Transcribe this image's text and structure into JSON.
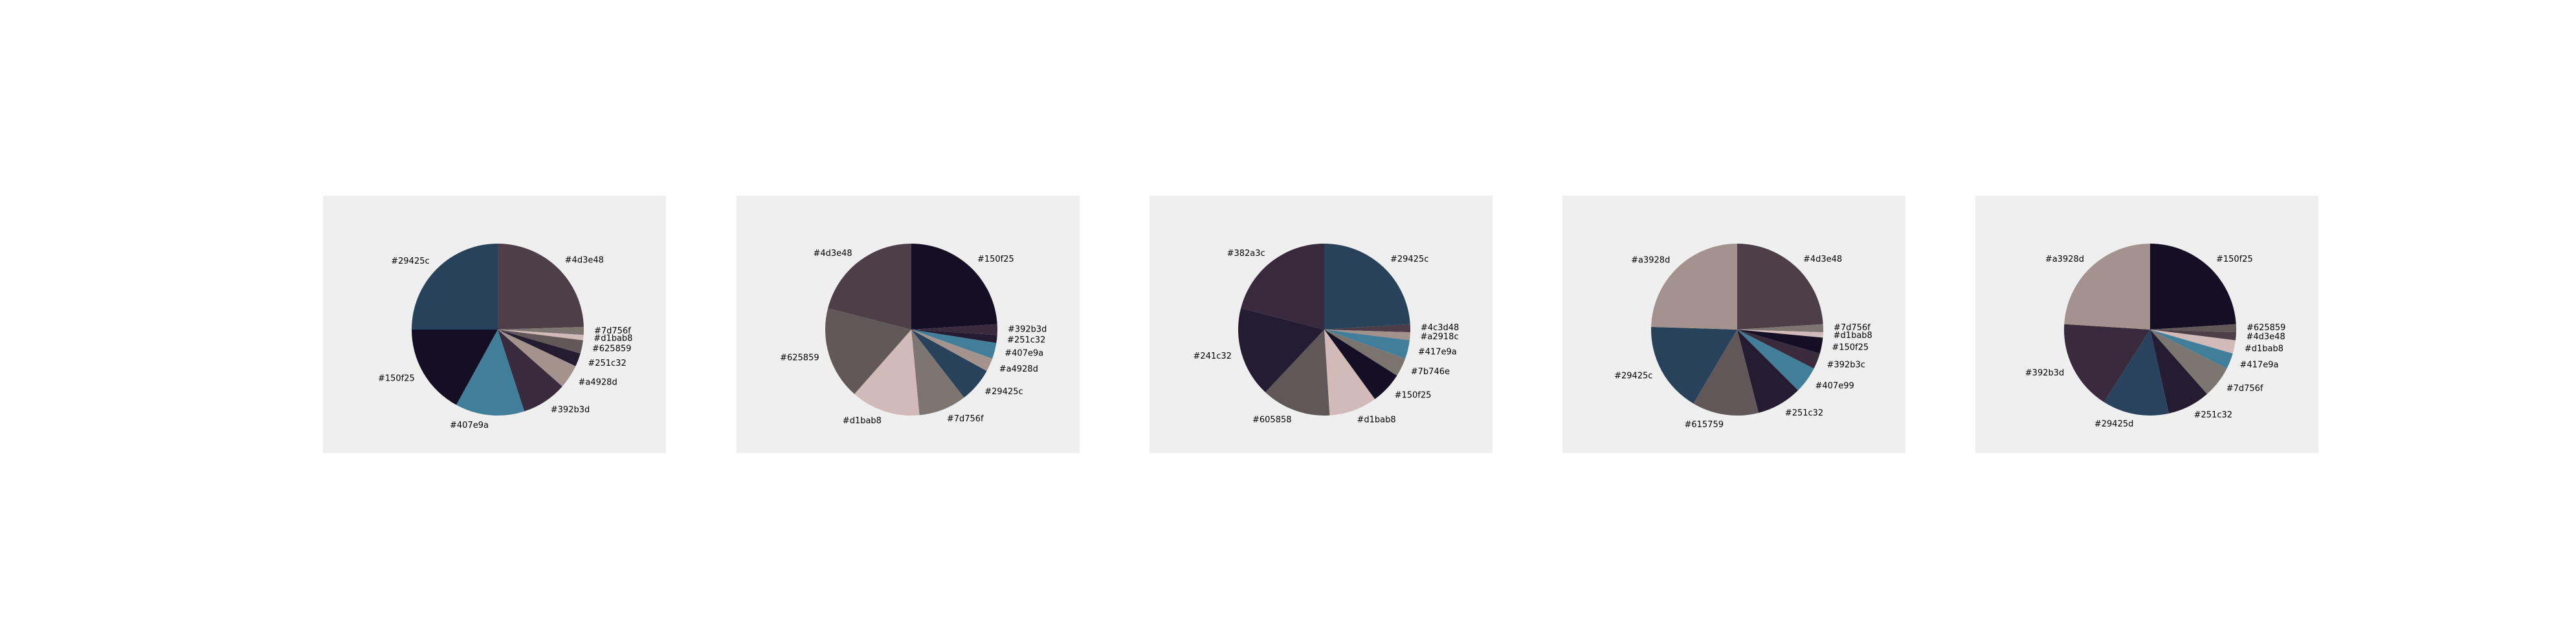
{
  "chart_data": [
    {
      "type": "pie",
      "start_angle": 90,
      "direction": "clockwise",
      "background": "#efefef",
      "slices": [
        {
          "label": "#4d3e48",
          "color": "#4d3e48",
          "value": 24.5
        },
        {
          "label": "#7d756f",
          "color": "#7d756f",
          "value": 1.5
        },
        {
          "label": "#d1bab8",
          "color": "#d1bab8",
          "value": 1.0
        },
        {
          "label": "#625859",
          "color": "#625859",
          "value": 2.5
        },
        {
          "label": "#251c32",
          "color": "#251c32",
          "value": 2.5
        },
        {
          "label": "#a4928d",
          "color": "#a4928d",
          "value": 4.5
        },
        {
          "label": "#392b3d",
          "color": "#392b3d",
          "value": 8.5
        },
        {
          "label": "#407e9a",
          "color": "#407e9a",
          "value": 13.0
        },
        {
          "label": "#150f25",
          "color": "#150f25",
          "value": 17.0
        },
        {
          "label": "#29425c",
          "color": "#29425c",
          "value": 25.0
        }
      ]
    },
    {
      "type": "pie",
      "start_angle": 90,
      "direction": "clockwise",
      "background": "#efefef",
      "slices": [
        {
          "label": "#150f25",
          "color": "#150f25",
          "value": 24.0
        },
        {
          "label": "#392b3d",
          "color": "#392b3d",
          "value": 2.0
        },
        {
          "label": "#251c32",
          "color": "#251c32",
          "value": 1.5
        },
        {
          "label": "#407e9a",
          "color": "#407e9a",
          "value": 3.0
        },
        {
          "label": "#a4928d",
          "color": "#a4928d",
          "value": 2.5
        },
        {
          "label": "#29425c",
          "color": "#29425c",
          "value": 6.5
        },
        {
          "label": "#7d756f",
          "color": "#7d756f",
          "value": 9.0
        },
        {
          "label": "#d1bab8",
          "color": "#d1bab8",
          "value": 13.0
        },
        {
          "label": "#625859",
          "color": "#625859",
          "value": 17.5
        },
        {
          "label": "#4d3e48",
          "color": "#4d3e48",
          "value": 21.0
        }
      ]
    },
    {
      "type": "pie",
      "start_angle": 90,
      "direction": "clockwise",
      "background": "#efefef",
      "slices": [
        {
          "label": "#29425c",
          "color": "#29425c",
          "value": 24.0
        },
        {
          "label": "#4c3d48",
          "color": "#4c3d48",
          "value": 1.5
        },
        {
          "label": "#a2918c",
          "color": "#a2918c",
          "value": 1.5
        },
        {
          "label": "#417e9a",
          "color": "#417e9a",
          "value": 3.5
        },
        {
          "label": "#7b746e",
          "color": "#7b746e",
          "value": 3.5
        },
        {
          "label": "#150f25",
          "color": "#150f25",
          "value": 6.0
        },
        {
          "label": "#d1bab8",
          "color": "#d1bab8",
          "value": 9.0
        },
        {
          "label": "#605858",
          "color": "#605858",
          "value": 13.0
        },
        {
          "label": "#241c32",
          "color": "#241c32",
          "value": 17.0
        },
        {
          "label": "#382a3c",
          "color": "#382a3c",
          "value": 21.0
        }
      ]
    },
    {
      "type": "pie",
      "start_angle": 90,
      "direction": "clockwise",
      "background": "#efefef",
      "slices": [
        {
          "label": "#4d3e48",
          "color": "#4d3e48",
          "value": 24.0
        },
        {
          "label": "#7d756f",
          "color": "#7d756f",
          "value": 1.5
        },
        {
          "label": "#d1bab8",
          "color": "#d1bab8",
          "value": 1.0
        },
        {
          "label": "#150f25",
          "color": "#150f25",
          "value": 3.0
        },
        {
          "label": "#392b3c",
          "color": "#392b3c",
          "value": 3.0
        },
        {
          "label": "#407e99",
          "color": "#407e99",
          "value": 5.0
        },
        {
          "label": "#251c32",
          "color": "#251c32",
          "value": 8.5
        },
        {
          "label": "#615759",
          "color": "#615759",
          "value": 12.5
        },
        {
          "label": "#29425c",
          "color": "#29425c",
          "value": 17.0
        },
        {
          "label": "#a3928d",
          "color": "#a3928d",
          "value": 24.5
        }
      ]
    },
    {
      "type": "pie",
      "start_angle": 90,
      "direction": "clockwise",
      "background": "#efefef",
      "slices": [
        {
          "label": "#150f25",
          "color": "#150f25",
          "value": 24.0
        },
        {
          "label": "#625859",
          "color": "#625859",
          "value": 1.5
        },
        {
          "label": "#4d3e48",
          "color": "#4d3e48",
          "value": 1.5
        },
        {
          "label": "#d1bab8",
          "color": "#d1bab8",
          "value": 2.5
        },
        {
          "label": "#417e9a",
          "color": "#417e9a",
          "value": 3.0
        },
        {
          "label": "#7d756f",
          "color": "#7d756f",
          "value": 6.0
        },
        {
          "label": "#251c32",
          "color": "#251c32",
          "value": 8.0
        },
        {
          "label": "#29425d",
          "color": "#29425d",
          "value": 12.5
        },
        {
          "label": "#392b3d",
          "color": "#392b3d",
          "value": 17.0
        },
        {
          "label": "#a3928d",
          "color": "#a3928d",
          "value": 24.0
        }
      ]
    }
  ]
}
